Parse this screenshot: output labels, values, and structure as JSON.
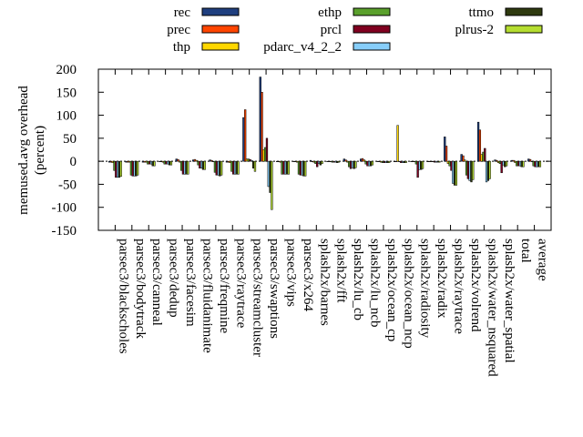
{
  "chart_data": {
    "type": "bar",
    "ylabel_line1": "memused.avg overhead",
    "ylabel_line2": "(percent)",
    "ylim": [
      -150,
      200
    ],
    "yticks": [
      -150,
      -100,
      -50,
      0,
      50,
      100,
      150,
      200
    ],
    "legend_position": "top",
    "categories": [
      "parsec3/blackscholes",
      "parsec3/bodytrack",
      "parsec3/canneal",
      "parsec3/dedup",
      "parsec3/facesim",
      "parsec3/fluidanimate",
      "parsec3/freqmine",
      "parsec3/raytrace",
      "parsec3/streamcluster",
      "parsec3/swaptions",
      "parsec3/vips",
      "parsec3/x264",
      "splash2x/barnes",
      "splash2x/fft",
      "splash2x/lu_cb",
      "splash2x/lu_ncb",
      "splash2x/ocean_cp",
      "splash2x/ocean_ncp",
      "splash2x/radiosity",
      "splash2x/radix",
      "splash2x/raytrace",
      "splash2x/volrend",
      "splash2x/water_nsquared",
      "splash2x/water_spatial",
      "total",
      "average"
    ],
    "series": [
      {
        "name": "rec",
        "color": "#1f3f7f",
        "values": [
          -2,
          -2,
          -2,
          -1,
          5,
          3,
          3,
          -2,
          95,
          183,
          -1,
          -1,
          2,
          0,
          5,
          5,
          -1,
          0,
          0,
          0,
          53,
          15,
          85,
          3,
          2,
          5
        ]
      },
      {
        "name": "prec",
        "color": "#ff4500",
        "values": [
          -2,
          -2,
          -2,
          -1,
          4,
          4,
          2,
          -2,
          112,
          150,
          -1,
          -1,
          -1,
          -1,
          3,
          6,
          -1,
          0,
          0,
          0,
          33,
          12,
          68,
          2,
          2,
          4
        ]
      },
      {
        "name": "thp",
        "color": "#ffd700",
        "values": [
          -3,
          -2,
          -2,
          -2,
          -2,
          2,
          0,
          -3,
          5,
          25,
          -2,
          -2,
          -2,
          -1,
          -2,
          3,
          -2,
          78,
          -1,
          -1,
          -5,
          3,
          15,
          -3,
          -3,
          0
        ]
      },
      {
        "name": "ethp",
        "color": "#5aa02c",
        "values": [
          -20,
          -30,
          -6,
          -6,
          -20,
          -8,
          -24,
          -22,
          5,
          30,
          -28,
          -28,
          -5,
          -2,
          -12,
          -6,
          -3,
          0,
          -6,
          -1,
          -10,
          -30,
          20,
          -5,
          -10,
          -10
        ]
      },
      {
        "name": "prcl",
        "color": "#800020",
        "values": [
          -35,
          -32,
          -6,
          -6,
          -28,
          -15,
          -30,
          -28,
          4,
          50,
          -28,
          -30,
          -12,
          -2,
          -16,
          -10,
          -3,
          -3,
          -35,
          -2,
          -20,
          -38,
          28,
          -25,
          -10,
          -12
        ]
      },
      {
        "name": "pdarc_v4_2_2",
        "color": "#87cefa",
        "values": [
          -35,
          -32,
          -6,
          -6,
          -28,
          -15,
          -30,
          -28,
          2,
          -55,
          -28,
          -30,
          -5,
          -2,
          -14,
          -10,
          -3,
          -3,
          -18,
          -2,
          -48,
          -42,
          -45,
          -8,
          -10,
          -12
        ]
      },
      {
        "name": "ttmo",
        "color": "#2f3a0f",
        "values": [
          -35,
          -32,
          -10,
          -8,
          -28,
          -18,
          -32,
          -28,
          -15,
          -68,
          -28,
          -32,
          -8,
          -3,
          -16,
          -10,
          -3,
          -3,
          -18,
          -2,
          -52,
          -45,
          -42,
          -12,
          -12,
          -12
        ]
      },
      {
        "name": "plrus-2",
        "color": "#b5dd30",
        "values": [
          -33,
          -30,
          -10,
          -8,
          -28,
          -18,
          -30,
          -28,
          -22,
          -105,
          -28,
          -32,
          -5,
          -2,
          -14,
          -8,
          -3,
          -3,
          -16,
          -2,
          -52,
          -40,
          -38,
          -10,
          -12,
          -12
        ]
      }
    ]
  }
}
